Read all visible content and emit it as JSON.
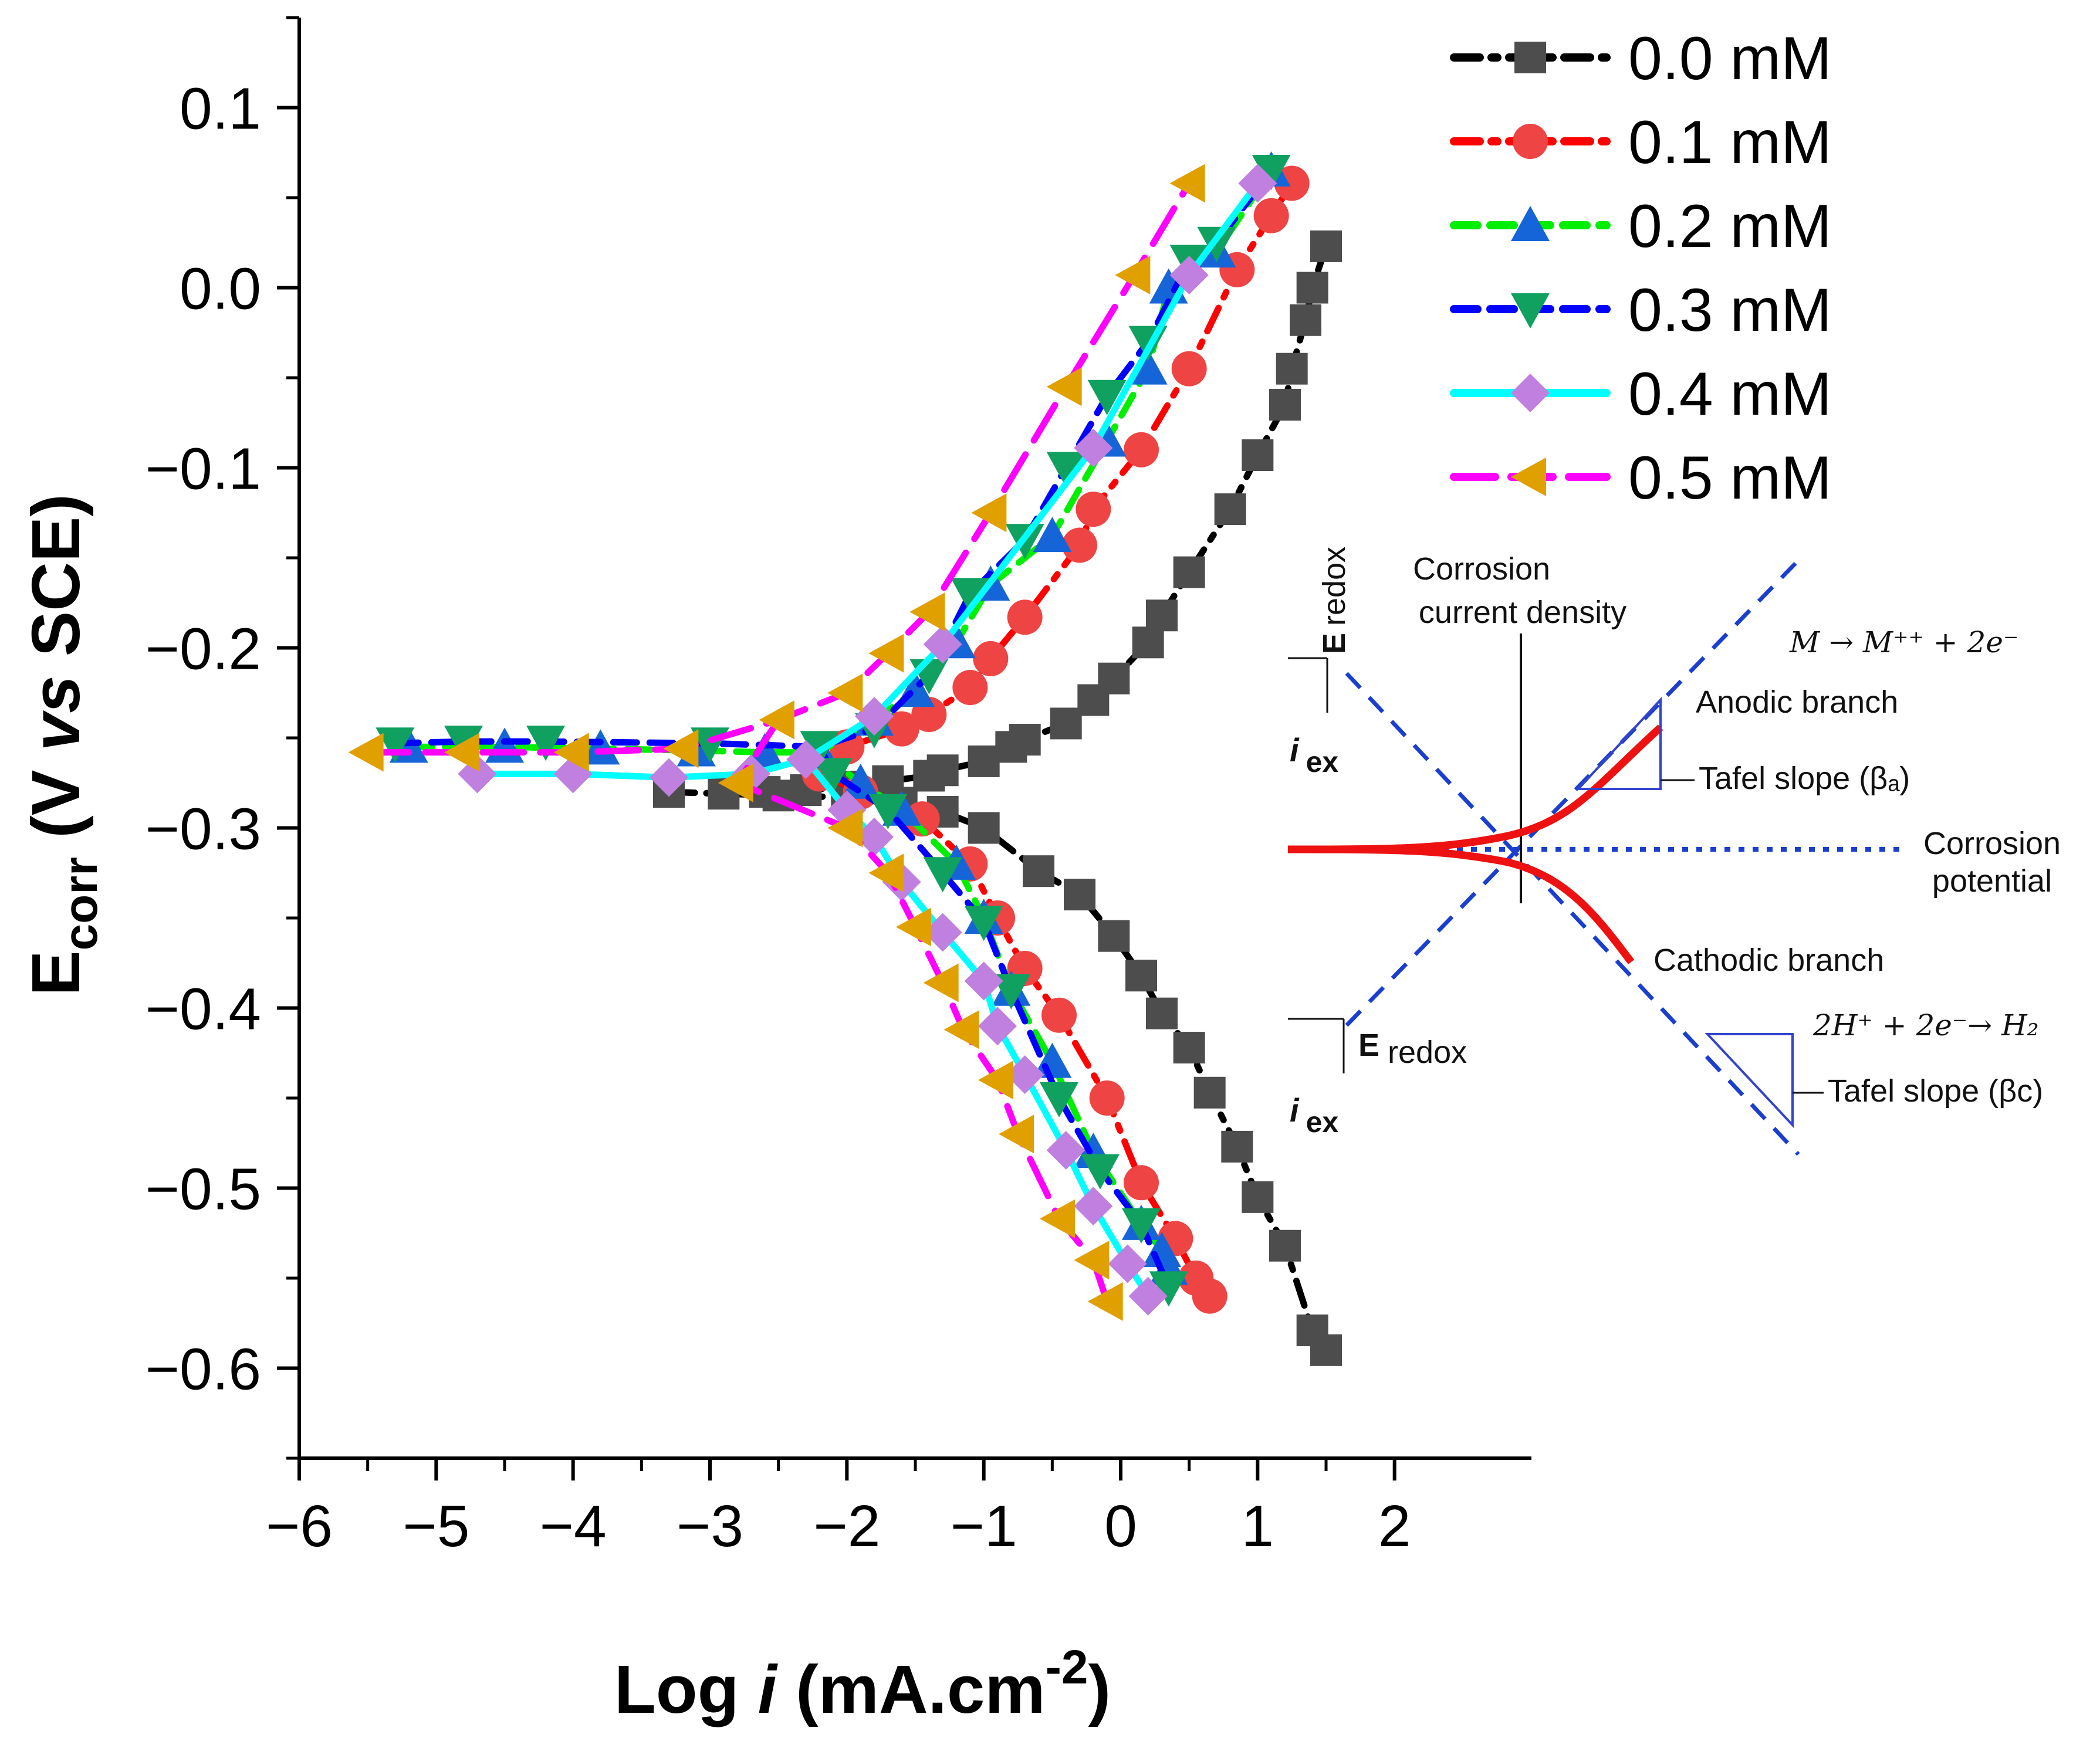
{
  "chart_data": {
    "type": "line",
    "title": "",
    "xlabel": {
      "prefix": "Log ",
      "italic": "i",
      "unit": " (mA.cm",
      "sup": "-2",
      "close": ")"
    },
    "ylabel": {
      "main": "E",
      "sub": "corr",
      "rest": " (V ",
      "italic": "vs",
      "end": " SCE)"
    },
    "xlim": [
      -6,
      3
    ],
    "ylim": [
      -0.65,
      0.15
    ],
    "xticks": [
      -6,
      -5,
      -4,
      -3,
      -2,
      -1,
      0,
      1,
      2
    ],
    "xtick_labels": [
      "−6",
      "−5",
      "−4",
      "−3",
      "−2",
      "−1",
      "0",
      "1",
      "2"
    ],
    "yticks": [
      0.1,
      0.0,
      -0.1,
      -0.2,
      -0.3,
      -0.4,
      -0.5,
      -0.6
    ],
    "ytick_labels": [
      "0.1",
      "0.0",
      "−0.1",
      "−0.2",
      "−0.3",
      "−0.4",
      "−0.5",
      "−0.6"
    ],
    "grid": false,
    "legend_position": "top-right",
    "series": [
      {
        "name": "0.0 mM",
        "line_color": "#000000",
        "marker_color": "#4d4d4d",
        "marker": "square",
        "dash": "dashdot",
        "anodic": [
          [
            -3.3,
            -0.28
          ],
          [
            -2.9,
            -0.281
          ],
          [
            -2.6,
            -0.28
          ],
          [
            -2.3,
            -0.279
          ],
          [
            -2.0,
            -0.277
          ],
          [
            -1.7,
            -0.274
          ],
          [
            -1.4,
            -0.271
          ],
          [
            -1.3,
            -0.268
          ],
          [
            -1.0,
            -0.263
          ],
          [
            -0.8,
            -0.255
          ],
          [
            -0.7,
            -0.251
          ],
          [
            -0.4,
            -0.242
          ],
          [
            -0.2,
            -0.229
          ],
          [
            -0.05,
            -0.217
          ],
          [
            0.2,
            -0.197
          ],
          [
            0.3,
            -0.182
          ],
          [
            0.5,
            -0.158
          ],
          [
            0.8,
            -0.123
          ],
          [
            1.0,
            -0.093
          ],
          [
            1.2,
            -0.065
          ],
          [
            1.25,
            -0.045
          ],
          [
            1.35,
            -0.018
          ],
          [
            1.4,
            0.0
          ],
          [
            1.5,
            0.023
          ]
        ],
        "cathodic": [
          [
            -3.3,
            -0.28
          ],
          [
            -2.5,
            -0.282
          ],
          [
            -2.0,
            -0.283
          ],
          [
            -1.6,
            -0.286
          ],
          [
            -1.3,
            -0.291
          ],
          [
            -1.0,
            -0.3
          ],
          [
            -0.6,
            -0.324
          ],
          [
            -0.3,
            -0.337
          ],
          [
            -0.05,
            -0.36
          ],
          [
            0.15,
            -0.382
          ],
          [
            0.3,
            -0.403
          ],
          [
            0.5,
            -0.422
          ],
          [
            0.65,
            -0.447
          ],
          [
            0.85,
            -0.477
          ],
          [
            1.0,
            -0.505
          ],
          [
            1.2,
            -0.532
          ],
          [
            1.4,
            -0.579
          ],
          [
            1.5,
            -0.59
          ]
        ]
      },
      {
        "name": "0.1 mM",
        "line_color": "#ff0000",
        "marker_color": "#ef4444",
        "marker": "circle",
        "dash": "dashdot",
        "anodic": [
          [
            -2.2,
            -0.27
          ],
          [
            -2.0,
            -0.255
          ],
          [
            -1.6,
            -0.245
          ],
          [
            -1.4,
            -0.237
          ],
          [
            -1.1,
            -0.222
          ],
          [
            -0.95,
            -0.206
          ],
          [
            -0.7,
            -0.183
          ],
          [
            -0.3,
            -0.143
          ],
          [
            -0.2,
            -0.123
          ],
          [
            0.15,
            -0.09
          ],
          [
            0.5,
            -0.045
          ],
          [
            0.85,
            0.01
          ],
          [
            1.1,
            0.04
          ],
          [
            1.25,
            0.058
          ]
        ],
        "cathodic": [
          [
            -2.2,
            -0.27
          ],
          [
            -1.9,
            -0.28
          ],
          [
            -1.45,
            -0.295
          ],
          [
            -1.1,
            -0.32
          ],
          [
            -0.9,
            -0.35
          ],
          [
            -0.7,
            -0.378
          ],
          [
            -0.45,
            -0.404
          ],
          [
            -0.1,
            -0.45
          ],
          [
            0.15,
            -0.497
          ],
          [
            0.4,
            -0.528
          ],
          [
            0.55,
            -0.55
          ],
          [
            0.65,
            -0.56
          ]
        ]
      },
      {
        "name": "0.2 mM",
        "line_color": "#00ee00",
        "marker_color": "#1565d8",
        "marker": "triangle-up",
        "dash": "dash",
        "anodic": [
          [
            -5.2,
            -0.255
          ],
          [
            -4.5,
            -0.255
          ],
          [
            -3.8,
            -0.256
          ],
          [
            -3.1,
            -0.257
          ],
          [
            -2.6,
            -0.258
          ],
          [
            -2.2,
            -0.258
          ],
          [
            -1.8,
            -0.24
          ],
          [
            -1.5,
            -0.224
          ],
          [
            -1.2,
            -0.197
          ],
          [
            -0.95,
            -0.165
          ],
          [
            -0.5,
            -0.138
          ],
          [
            -0.1,
            -0.085
          ],
          [
            0.2,
            -0.045
          ],
          [
            0.35,
            0.0
          ],
          [
            0.7,
            0.02
          ],
          [
            1.1,
            0.065
          ]
        ],
        "cathodic": [
          [
            -2.2,
            -0.258
          ],
          [
            -1.9,
            -0.275
          ],
          [
            -1.6,
            -0.29
          ],
          [
            -1.2,
            -0.32
          ],
          [
            -1.0,
            -0.35
          ],
          [
            -0.8,
            -0.39
          ],
          [
            -0.5,
            -0.43
          ],
          [
            -0.2,
            -0.48
          ],
          [
            0.15,
            -0.52
          ],
          [
            0.3,
            -0.535
          ],
          [
            0.35,
            -0.545
          ]
        ]
      },
      {
        "name": "0.3 mM",
        "line_color": "#0000ff",
        "marker_color": "#10a060",
        "marker": "triangle-down",
        "dash": "dash",
        "anodic": [
          [
            -5.3,
            -0.253
          ],
          [
            -4.8,
            -0.252
          ],
          [
            -4.2,
            -0.252
          ],
          [
            -3.0,
            -0.253
          ],
          [
            -2.2,
            -0.255
          ],
          [
            -1.8,
            -0.245
          ],
          [
            -1.4,
            -0.215
          ],
          [
            -1.1,
            -0.17
          ],
          [
            -0.7,
            -0.14
          ],
          [
            -0.4,
            -0.1
          ],
          [
            -0.1,
            -0.06
          ],
          [
            0.2,
            -0.03
          ],
          [
            0.5,
            0.015
          ],
          [
            0.7,
            0.025
          ],
          [
            1.1,
            0.065
          ]
        ],
        "cathodic": [
          [
            -2.2,
            -0.255
          ],
          [
            -2.1,
            -0.27
          ],
          [
            -1.7,
            -0.29
          ],
          [
            -1.3,
            -0.325
          ],
          [
            -1.0,
            -0.352
          ],
          [
            -0.8,
            -0.39
          ],
          [
            -0.45,
            -0.45
          ],
          [
            -0.15,
            -0.49
          ],
          [
            0.15,
            -0.52
          ],
          [
            0.35,
            -0.555
          ]
        ]
      },
      {
        "name": "0.4 mM",
        "line_color": "#00ffff",
        "marker_color": "#c080e0",
        "marker": "diamond",
        "dash": "solid",
        "anodic": [
          [
            -4.7,
            -0.27
          ],
          [
            -4.0,
            -0.27
          ],
          [
            -3.3,
            -0.272
          ],
          [
            -2.7,
            -0.27
          ],
          [
            -2.3,
            -0.262
          ],
          [
            -1.8,
            -0.238
          ],
          [
            -1.3,
            -0.198
          ],
          [
            -0.2,
            -0.089
          ],
          [
            0.5,
            0.007
          ],
          [
            1.0,
            0.058
          ]
        ],
        "cathodic": [
          [
            -2.3,
            -0.262
          ],
          [
            -2.0,
            -0.29
          ],
          [
            -1.8,
            -0.305
          ],
          [
            -1.6,
            -0.33
          ],
          [
            -1.3,
            -0.358
          ],
          [
            -1.0,
            -0.385
          ],
          [
            -0.9,
            -0.41
          ],
          [
            -0.7,
            -0.437
          ],
          [
            -0.4,
            -0.479
          ],
          [
            -0.2,
            -0.51
          ],
          [
            0.05,
            -0.542
          ],
          [
            0.2,
            -0.56
          ]
        ]
      },
      {
        "name": "0.5 mM",
        "line_color": "#ff00ff",
        "marker_color": "#e0a000",
        "marker": "triangle-left",
        "dash": "longdash",
        "anodic": [
          [
            -5.5,
            -0.258
          ],
          [
            -4.8,
            -0.258
          ],
          [
            -4.0,
            -0.258
          ],
          [
            -3.2,
            -0.256
          ],
          [
            -2.5,
            -0.24
          ],
          [
            -2.0,
            -0.225
          ],
          [
            -1.7,
            -0.203
          ],
          [
            -1.4,
            -0.18
          ],
          [
            -0.95,
            -0.125
          ],
          [
            -0.4,
            -0.055
          ],
          [
            0.1,
            0.007
          ],
          [
            0.5,
            0.058
          ]
        ],
        "cathodic": [
          [
            -2.5,
            -0.24
          ],
          [
            -2.8,
            -0.275
          ],
          [
            -2.0,
            -0.3
          ],
          [
            -1.7,
            -0.325
          ],
          [
            -1.5,
            -0.355
          ],
          [
            -1.3,
            -0.386
          ],
          [
            -1.15,
            -0.412
          ],
          [
            -0.9,
            -0.44
          ],
          [
            -0.75,
            -0.47
          ],
          [
            -0.45,
            -0.517
          ],
          [
            -0.2,
            -0.54
          ],
          [
            -0.1,
            -0.563
          ]
        ]
      }
    ]
  },
  "inset": {
    "corrosion_current_density": [
      "Corrosion",
      "current density"
    ],
    "anodic_reaction": "M → M⁺⁺ + 2e⁻",
    "anodic_branch": "Anodic branch",
    "tafel_anodic": "Tafel slope (βₐ)",
    "corrosion_potential": [
      "Corrosion",
      "potential"
    ],
    "cathodic_branch": "Cathodic branch",
    "cathodic_reaction": "2H⁺ + 2e⁻→ H₂",
    "tafel_cathodic": "Tafel slope (βᴄ)",
    "e_redox_top": {
      "e": "E",
      "sub": "redox"
    },
    "i_ex_top": {
      "i": "i",
      "sub": "ex"
    },
    "e_redox_bottom": {
      "e": "E",
      "sub": "redox"
    },
    "i_ex_bottom": {
      "i": "i",
      "sub": "ex"
    },
    "colors": {
      "dashed": "#1a3fd0",
      "curve": "#ee1111",
      "triangle": "#3344cc"
    }
  }
}
